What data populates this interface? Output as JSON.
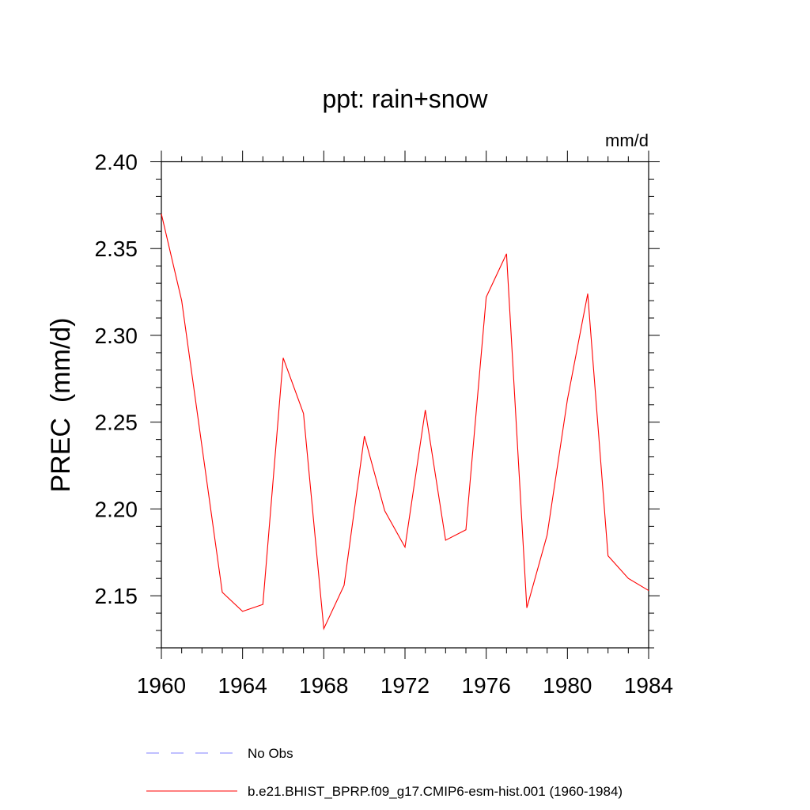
{
  "chart_data": {
    "type": "line",
    "title": "ppt: rain+snow",
    "units": "mm/d",
    "ylabel": "PREC  (mm/d)",
    "xlabel": "",
    "xlim": [
      1960,
      1984
    ],
    "ylim": [
      2.12,
      2.4
    ],
    "x_ticks": [
      1960,
      1964,
      1968,
      1972,
      1976,
      1980,
      1984
    ],
    "x_tick_labels": [
      "1960",
      "1964",
      "1968",
      "1972",
      "1976",
      "1980",
      "1984"
    ],
    "y_ticks": [
      2.15,
      2.2,
      2.25,
      2.3,
      2.35,
      2.4
    ],
    "y_tick_labels": [
      "2.15",
      "2.20",
      "2.25",
      "2.30",
      "2.35",
      "2.40"
    ],
    "grid": false,
    "legend_position": "bottom",
    "series": [
      {
        "name": "b.e21.BHIST_BPRP.f09_g17.CMIP6-esm-hist.001 (1960-1984)",
        "color": "#ff0000",
        "dash": "solid",
        "x": [
          1960,
          1961,
          1962,
          1963,
          1964,
          1965,
          1966,
          1967,
          1968,
          1969,
          1970,
          1971,
          1972,
          1973,
          1974,
          1975,
          1976,
          1977,
          1978,
          1979,
          1980,
          1981,
          1982,
          1983,
          1984
        ],
        "y": [
          2.37,
          2.32,
          2.236,
          2.152,
          2.141,
          2.145,
          2.287,
          2.255,
          2.131,
          2.156,
          2.242,
          2.199,
          2.178,
          2.257,
          2.182,
          2.188,
          2.322,
          2.347,
          2.143,
          2.185,
          2.263,
          2.324,
          2.173,
          2.16,
          2.153
        ]
      }
    ],
    "legend": [
      {
        "label": "No Obs",
        "color": "#8080ff",
        "dash": "dashed"
      },
      {
        "label": "b.e21.BHIST_BPRP.f09_g17.CMIP6-esm-hist.001 (1960-1984)",
        "color": "#ff0000",
        "dash": "solid"
      }
    ]
  }
}
